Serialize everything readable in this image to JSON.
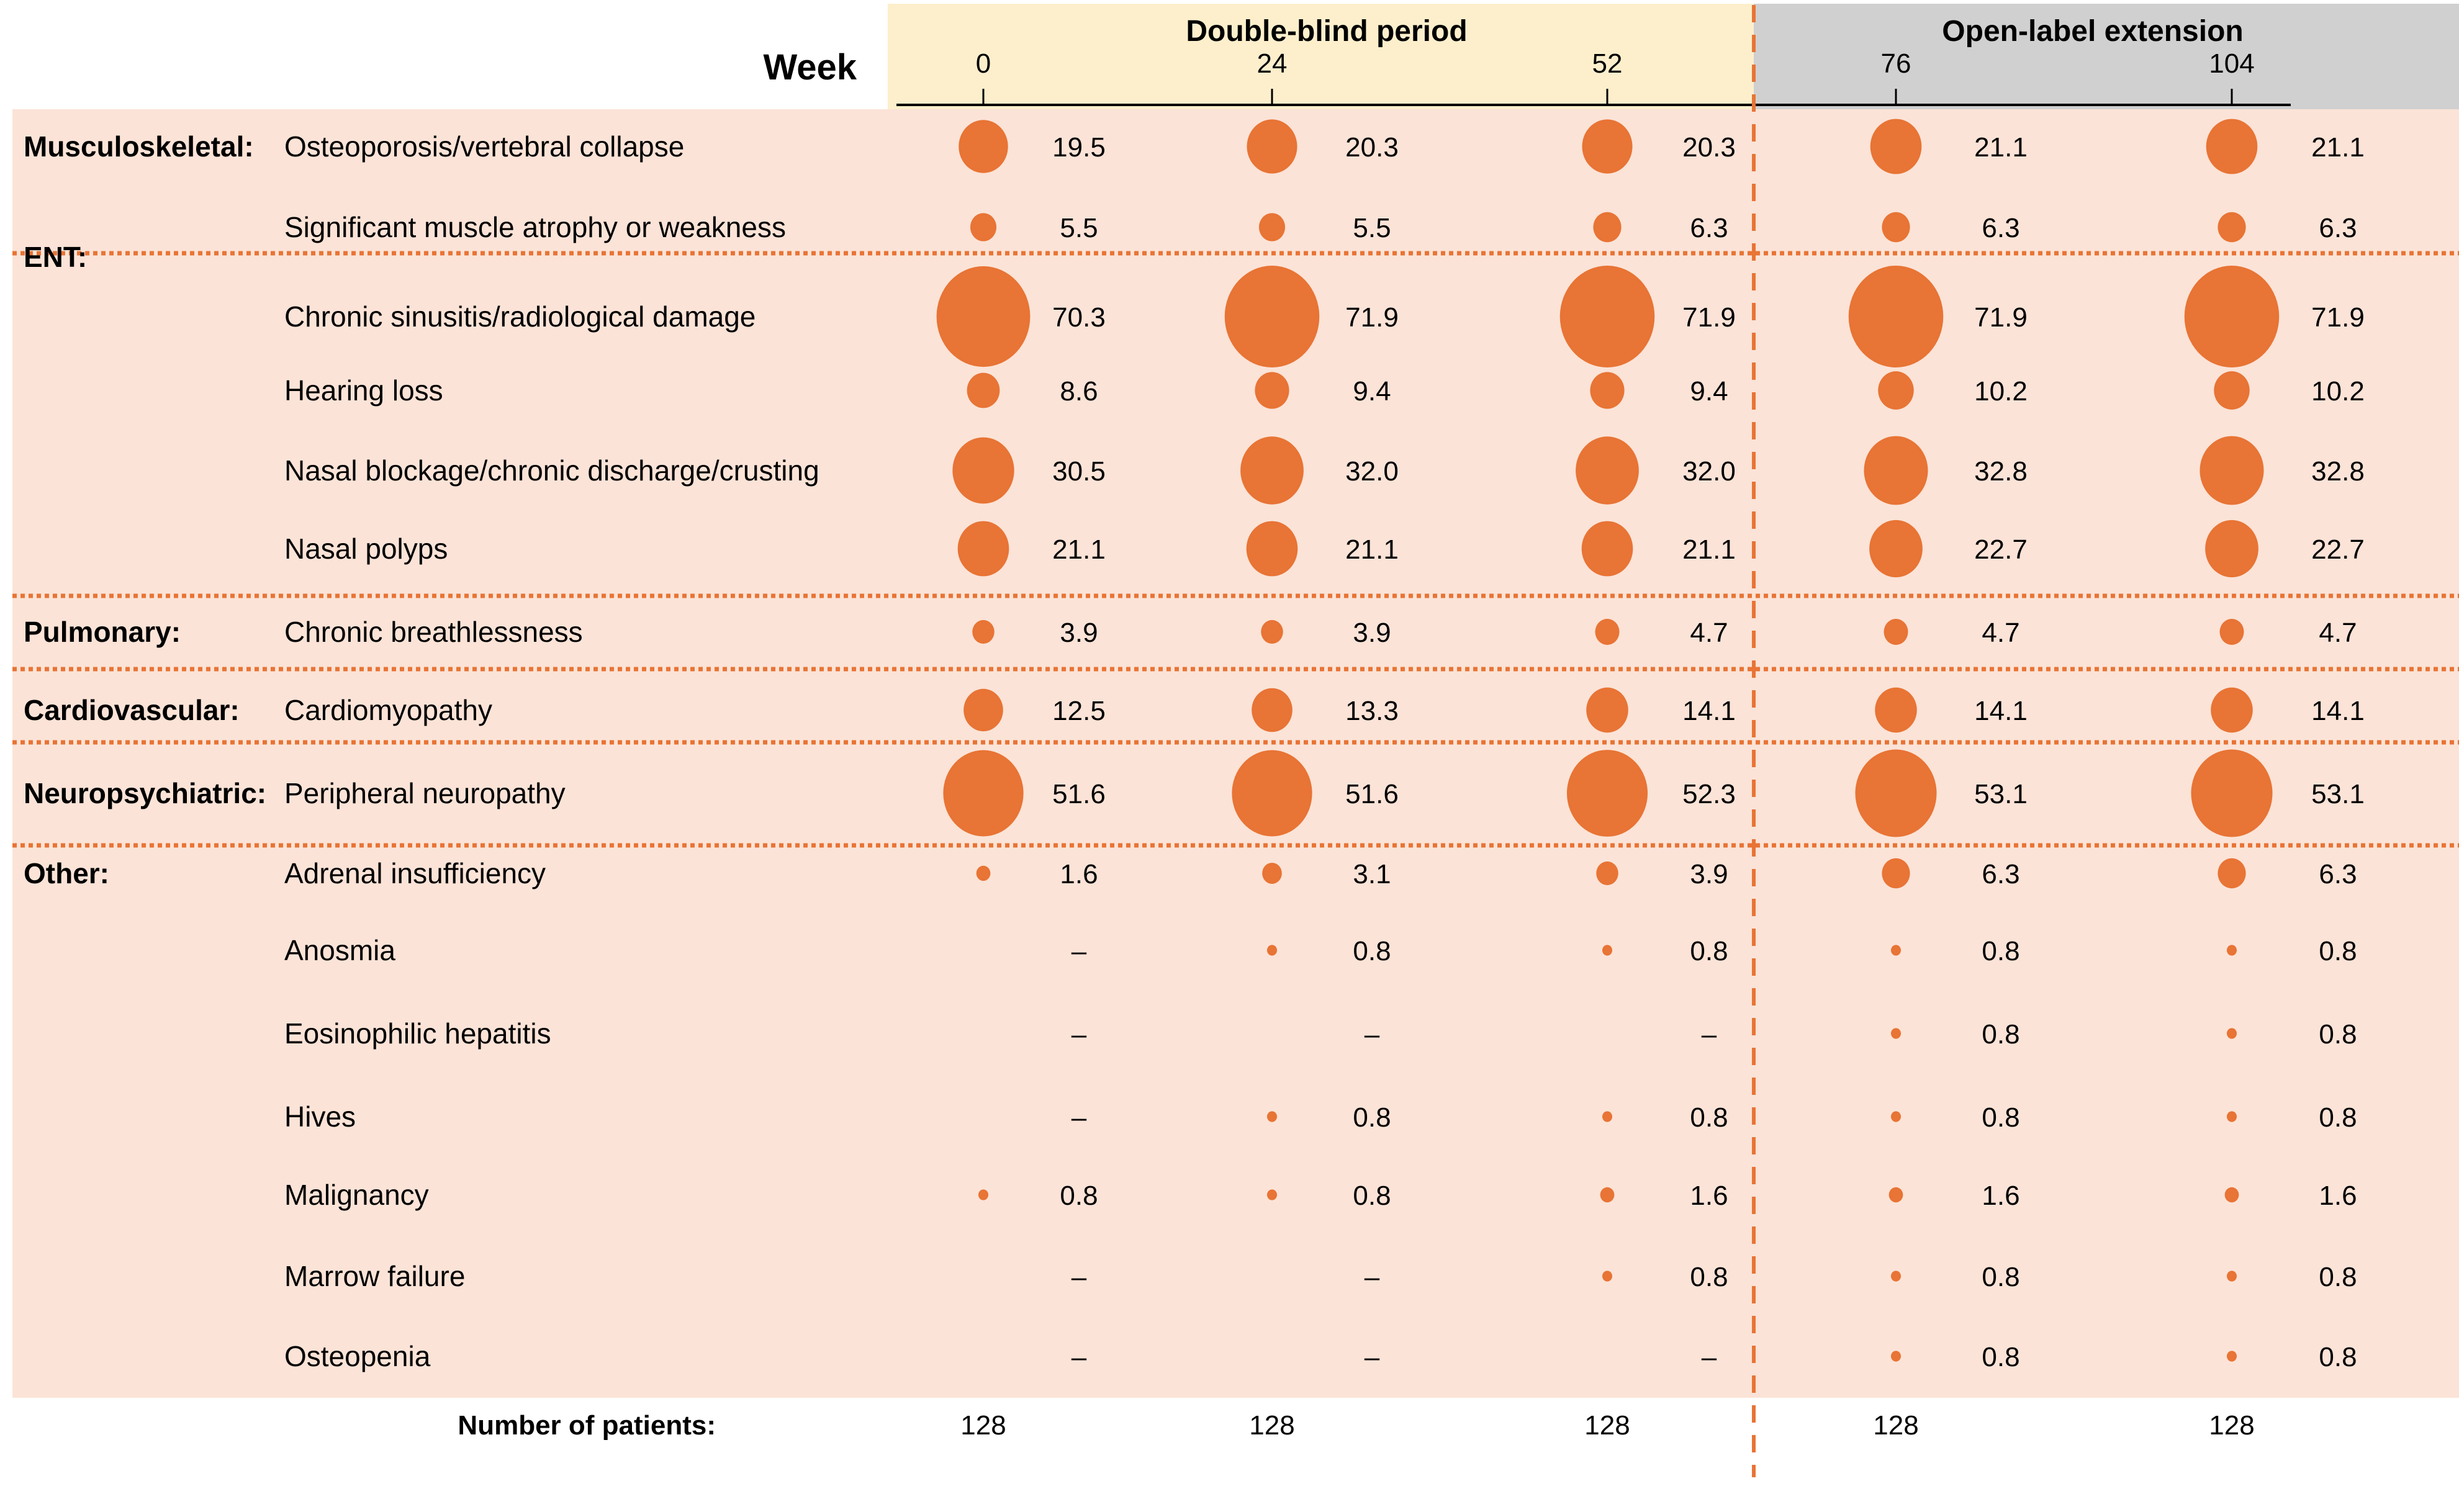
{
  "chart_data": {
    "type": "bubble-table",
    "title": "",
    "xlabel": "Week",
    "periods": [
      {
        "name": "Double-blind period",
        "weeks": [
          "0",
          "24",
          "52"
        ],
        "color": "#fdefcc"
      },
      {
        "name": "Open-label extension",
        "weeks": [
          "76",
          "104"
        ],
        "color": "#d0d0d0"
      }
    ],
    "weeks": [
      "0",
      "24",
      "52",
      "76",
      "104"
    ],
    "unit": "% of patients",
    "missing_label": "–",
    "categories": [
      {
        "name": "Musculoskeletal:",
        "items": [
          {
            "label": "Osteoporosis/vertebral collapse",
            "values": [
              19.5,
              20.3,
              20.3,
              21.1,
              21.1
            ]
          },
          {
            "label": "Significant muscle atrophy or weakness",
            "values": [
              5.5,
              5.5,
              6.3,
              6.3,
              6.3
            ]
          }
        ]
      },
      {
        "name": "ENT:",
        "items": [
          {
            "label": "Chronic sinusitis/radiological damage",
            "values": [
              70.3,
              71.9,
              71.9,
              71.9,
              71.9
            ]
          },
          {
            "label": "Hearing loss",
            "values": [
              8.6,
              9.4,
              9.4,
              10.2,
              10.2
            ]
          },
          {
            "label": "Nasal blockage/chronic discharge/crusting",
            "values": [
              30.5,
              32.0,
              32.0,
              32.8,
              32.8
            ]
          },
          {
            "label": "Nasal polyps",
            "values": [
              21.1,
              21.1,
              21.1,
              22.7,
              22.7
            ]
          }
        ]
      },
      {
        "name": "Pulmonary:",
        "items": [
          {
            "label": "Chronic breathlessness",
            "values": [
              3.9,
              3.9,
              4.7,
              4.7,
              4.7
            ]
          }
        ]
      },
      {
        "name": "Cardiovascular:",
        "items": [
          {
            "label": "Cardiomyopathy",
            "values": [
              12.5,
              13.3,
              14.1,
              14.1,
              14.1
            ]
          }
        ]
      },
      {
        "name": "Neuropsychiatric:",
        "items": [
          {
            "label": "Peripheral neuropathy",
            "values": [
              51.6,
              51.6,
              52.3,
              53.1,
              53.1
            ]
          }
        ]
      },
      {
        "name": "Other:",
        "items": [
          {
            "label": "Adrenal insufficiency",
            "values": [
              1.6,
              3.1,
              3.9,
              6.3,
              6.3
            ]
          },
          {
            "label": "Anosmia",
            "values": [
              null,
              0.8,
              0.8,
              0.8,
              0.8
            ]
          },
          {
            "label": "Eosinophilic hepatitis",
            "values": [
              null,
              null,
              null,
              0.8,
              0.8
            ]
          },
          {
            "label": "Hives",
            "values": [
              null,
              0.8,
              0.8,
              0.8,
              0.8
            ]
          },
          {
            "label": "Malignancy",
            "values": [
              0.8,
              0.8,
              1.6,
              1.6,
              1.6
            ]
          },
          {
            "label": "Marrow failure",
            "values": [
              null,
              null,
              0.8,
              0.8,
              0.8
            ]
          },
          {
            "label": "Osteopenia",
            "values": [
              null,
              null,
              null,
              0.8,
              0.8
            ]
          }
        ]
      }
    ],
    "patients_label": "Number of patients:",
    "patients": [
      128,
      128,
      128,
      128,
      128
    ],
    "colors": {
      "bubble": "#e87435",
      "body_bg": "#fbe3d7",
      "separator": "#e87435",
      "divider": "#e87435",
      "axis": "#000000"
    }
  }
}
